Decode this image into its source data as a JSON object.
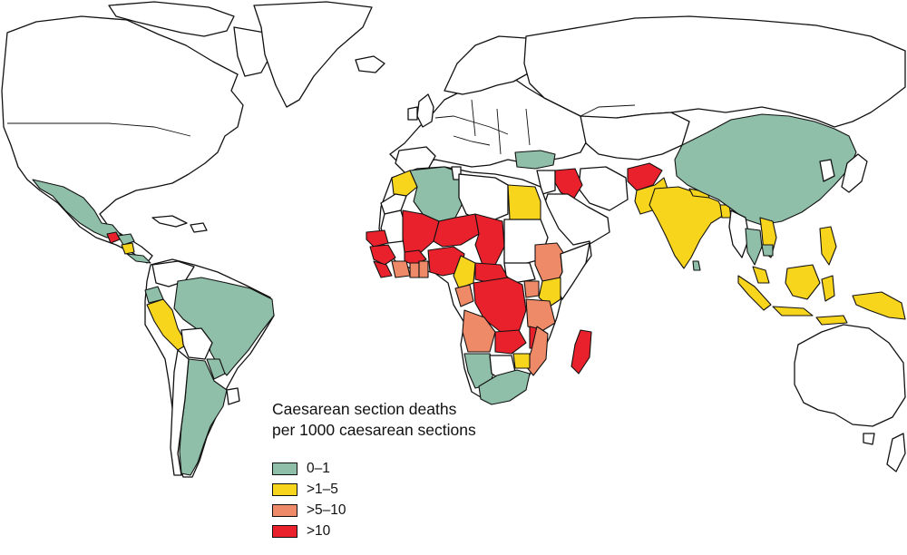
{
  "legend": {
    "title_line1": "Caesarean section deaths",
    "title_line2": "per 1000 caesarean sections",
    "categories": [
      {
        "key": "c1",
        "label": "0–1",
        "color": "#8fbfa8"
      },
      {
        "key": "c2",
        "label": ">1–5",
        "color": "#f7d51d"
      },
      {
        "key": "c3",
        "label": ">5–10",
        "color": "#ef8a68"
      },
      {
        "key": "c4",
        "label": ">10",
        "color": "#e8212c"
      }
    ]
  }
}
